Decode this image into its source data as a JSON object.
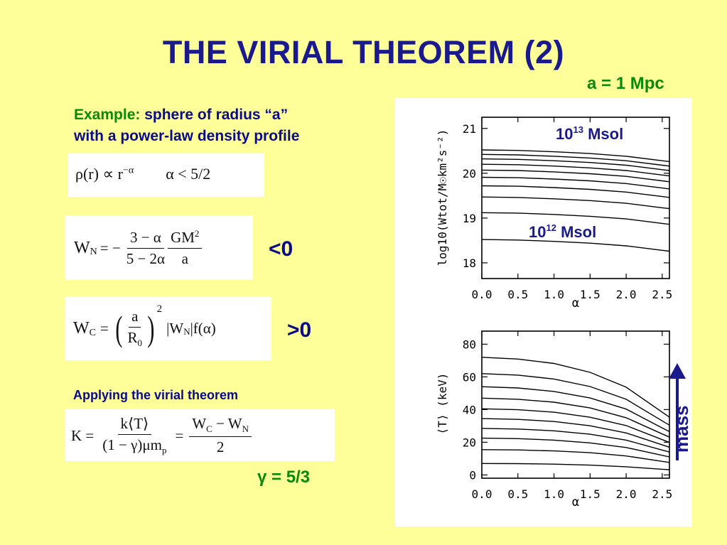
{
  "slide": {
    "title": "THE VIRIAL THEOREM (2)",
    "radius_label": "a = 1 Mpc",
    "example_prefix": "Example:",
    "example_line1_rest": "sphere of radius “a”",
    "example_line2": "with a power-law density profile",
    "applying_label": "Applying the virial theorem",
    "gamma_label": "γ = 5/3",
    "sign_wn": "<0",
    "sign_wc": ">0",
    "mass_label": "mass"
  },
  "equations": {
    "density": {
      "lhs": "ρ(r) ∝ r",
      "exp": "−α",
      "cond": "α < 5/2"
    },
    "wn": {
      "lhs": "W",
      "sub": "N",
      "eq": "= −",
      "num1": "3 − α",
      "den1": "5 − 2α",
      "num2": "GM",
      "num2_sup": "2",
      "den2": "a"
    },
    "wc": {
      "lhs": "W",
      "sub": "C",
      "eq": "=",
      "num": "a",
      "den": "R",
      "den_sub": "0",
      "sup": "2",
      "tail": "|W",
      "tail_sub": "N",
      "tail_end": "|f(α)"
    },
    "k": {
      "lhs": "K =",
      "num1": "k⟨T⟩",
      "den1": "(1 − γ)μm",
      "den1_sub": "p",
      "eq": "=",
      "num2": "W",
      "num2_sub": "C",
      "num2_mid": " − W",
      "num2_sub2": "N",
      "den2": "2"
    }
  },
  "chart_data": [
    {
      "type": "line",
      "xlabel": "α",
      "ylabel": "log10(Wtot/M☉km²s⁻²)",
      "xlim": [
        0.0,
        2.6
      ],
      "ylim": [
        17.65,
        21.25
      ],
      "xticks": [
        "0.0",
        "0.5",
        "1.0",
        "1.5",
        "2.0",
        "2.5"
      ],
      "yticks": [
        18,
        19,
        20,
        21
      ],
      "annotations": [
        "10",
        "13",
        " Msol",
        "10",
        "12",
        " Msol"
      ],
      "x": [
        0.0,
        0.5,
        1.0,
        1.5,
        2.0,
        2.5
      ],
      "series": [
        {
          "values": [
            18.52,
            18.51,
            18.48,
            18.44,
            18.38,
            18.28
          ]
        },
        {
          "values": [
            19.12,
            19.11,
            19.08,
            19.04,
            18.98,
            18.88
          ]
        },
        {
          "values": [
            19.47,
            19.46,
            19.43,
            19.39,
            19.33,
            19.23
          ]
        },
        {
          "values": [
            19.72,
            19.71,
            19.68,
            19.64,
            19.58,
            19.48
          ]
        },
        {
          "values": [
            19.91,
            19.9,
            19.87,
            19.83,
            19.77,
            19.67
          ]
        },
        {
          "values": [
            20.07,
            20.06,
            20.03,
            19.99,
            19.93,
            19.83
          ]
        },
        {
          "values": [
            20.2,
            20.19,
            20.16,
            20.12,
            20.06,
            19.96
          ]
        },
        {
          "values": [
            20.32,
            20.31,
            20.28,
            20.24,
            20.18,
            20.08
          ]
        },
        {
          "values": [
            20.42,
            20.41,
            20.38,
            20.34,
            20.28,
            20.18
          ]
        },
        {
          "values": [
            20.52,
            20.51,
            20.48,
            20.44,
            20.38,
            20.28
          ]
        }
      ]
    },
    {
      "type": "line",
      "xlabel": "α",
      "ylabel": "⟨T⟩ (keV)",
      "xlim": [
        0.0,
        2.6
      ],
      "ylim": [
        -2,
        88
      ],
      "xticks": [
        "0.0",
        "0.5",
        "1.0",
        "1.5",
        "2.0",
        "2.5"
      ],
      "yticks": [
        0,
        20,
        40,
        60,
        80
      ],
      "x": [
        0.0,
        0.5,
        1.0,
        1.5,
        2.0,
        2.5
      ],
      "series": [
        {
          "values": [
            7.0,
            6.9,
            6.6,
            6.0,
            5.0,
            3.5
          ]
        },
        {
          "values": [
            15.5,
            15.3,
            14.7,
            13.6,
            11.6,
            8.3
          ]
        },
        {
          "values": [
            22.5,
            22.2,
            21.3,
            19.6,
            16.8,
            12.0
          ]
        },
        {
          "values": [
            28.5,
            28.1,
            27.0,
            24.9,
            21.3,
            15.2
          ]
        },
        {
          "values": [
            34.5,
            34.0,
            32.7,
            30.1,
            25.7,
            18.4
          ]
        },
        {
          "values": [
            40.5,
            39.9,
            38.4,
            35.3,
            30.2,
            21.6
          ]
        },
        {
          "values": [
            47.0,
            46.3,
            44.5,
            41.0,
            35.0,
            25.1
          ]
        },
        {
          "values": [
            54.0,
            53.2,
            51.1,
            47.1,
            40.3,
            28.8
          ]
        },
        {
          "values": [
            62.0,
            61.1,
            58.7,
            54.1,
            46.3,
            33.1
          ]
        },
        {
          "values": [
            72.0,
            70.9,
            68.2,
            62.8,
            53.7,
            38.4
          ]
        }
      ]
    }
  ]
}
